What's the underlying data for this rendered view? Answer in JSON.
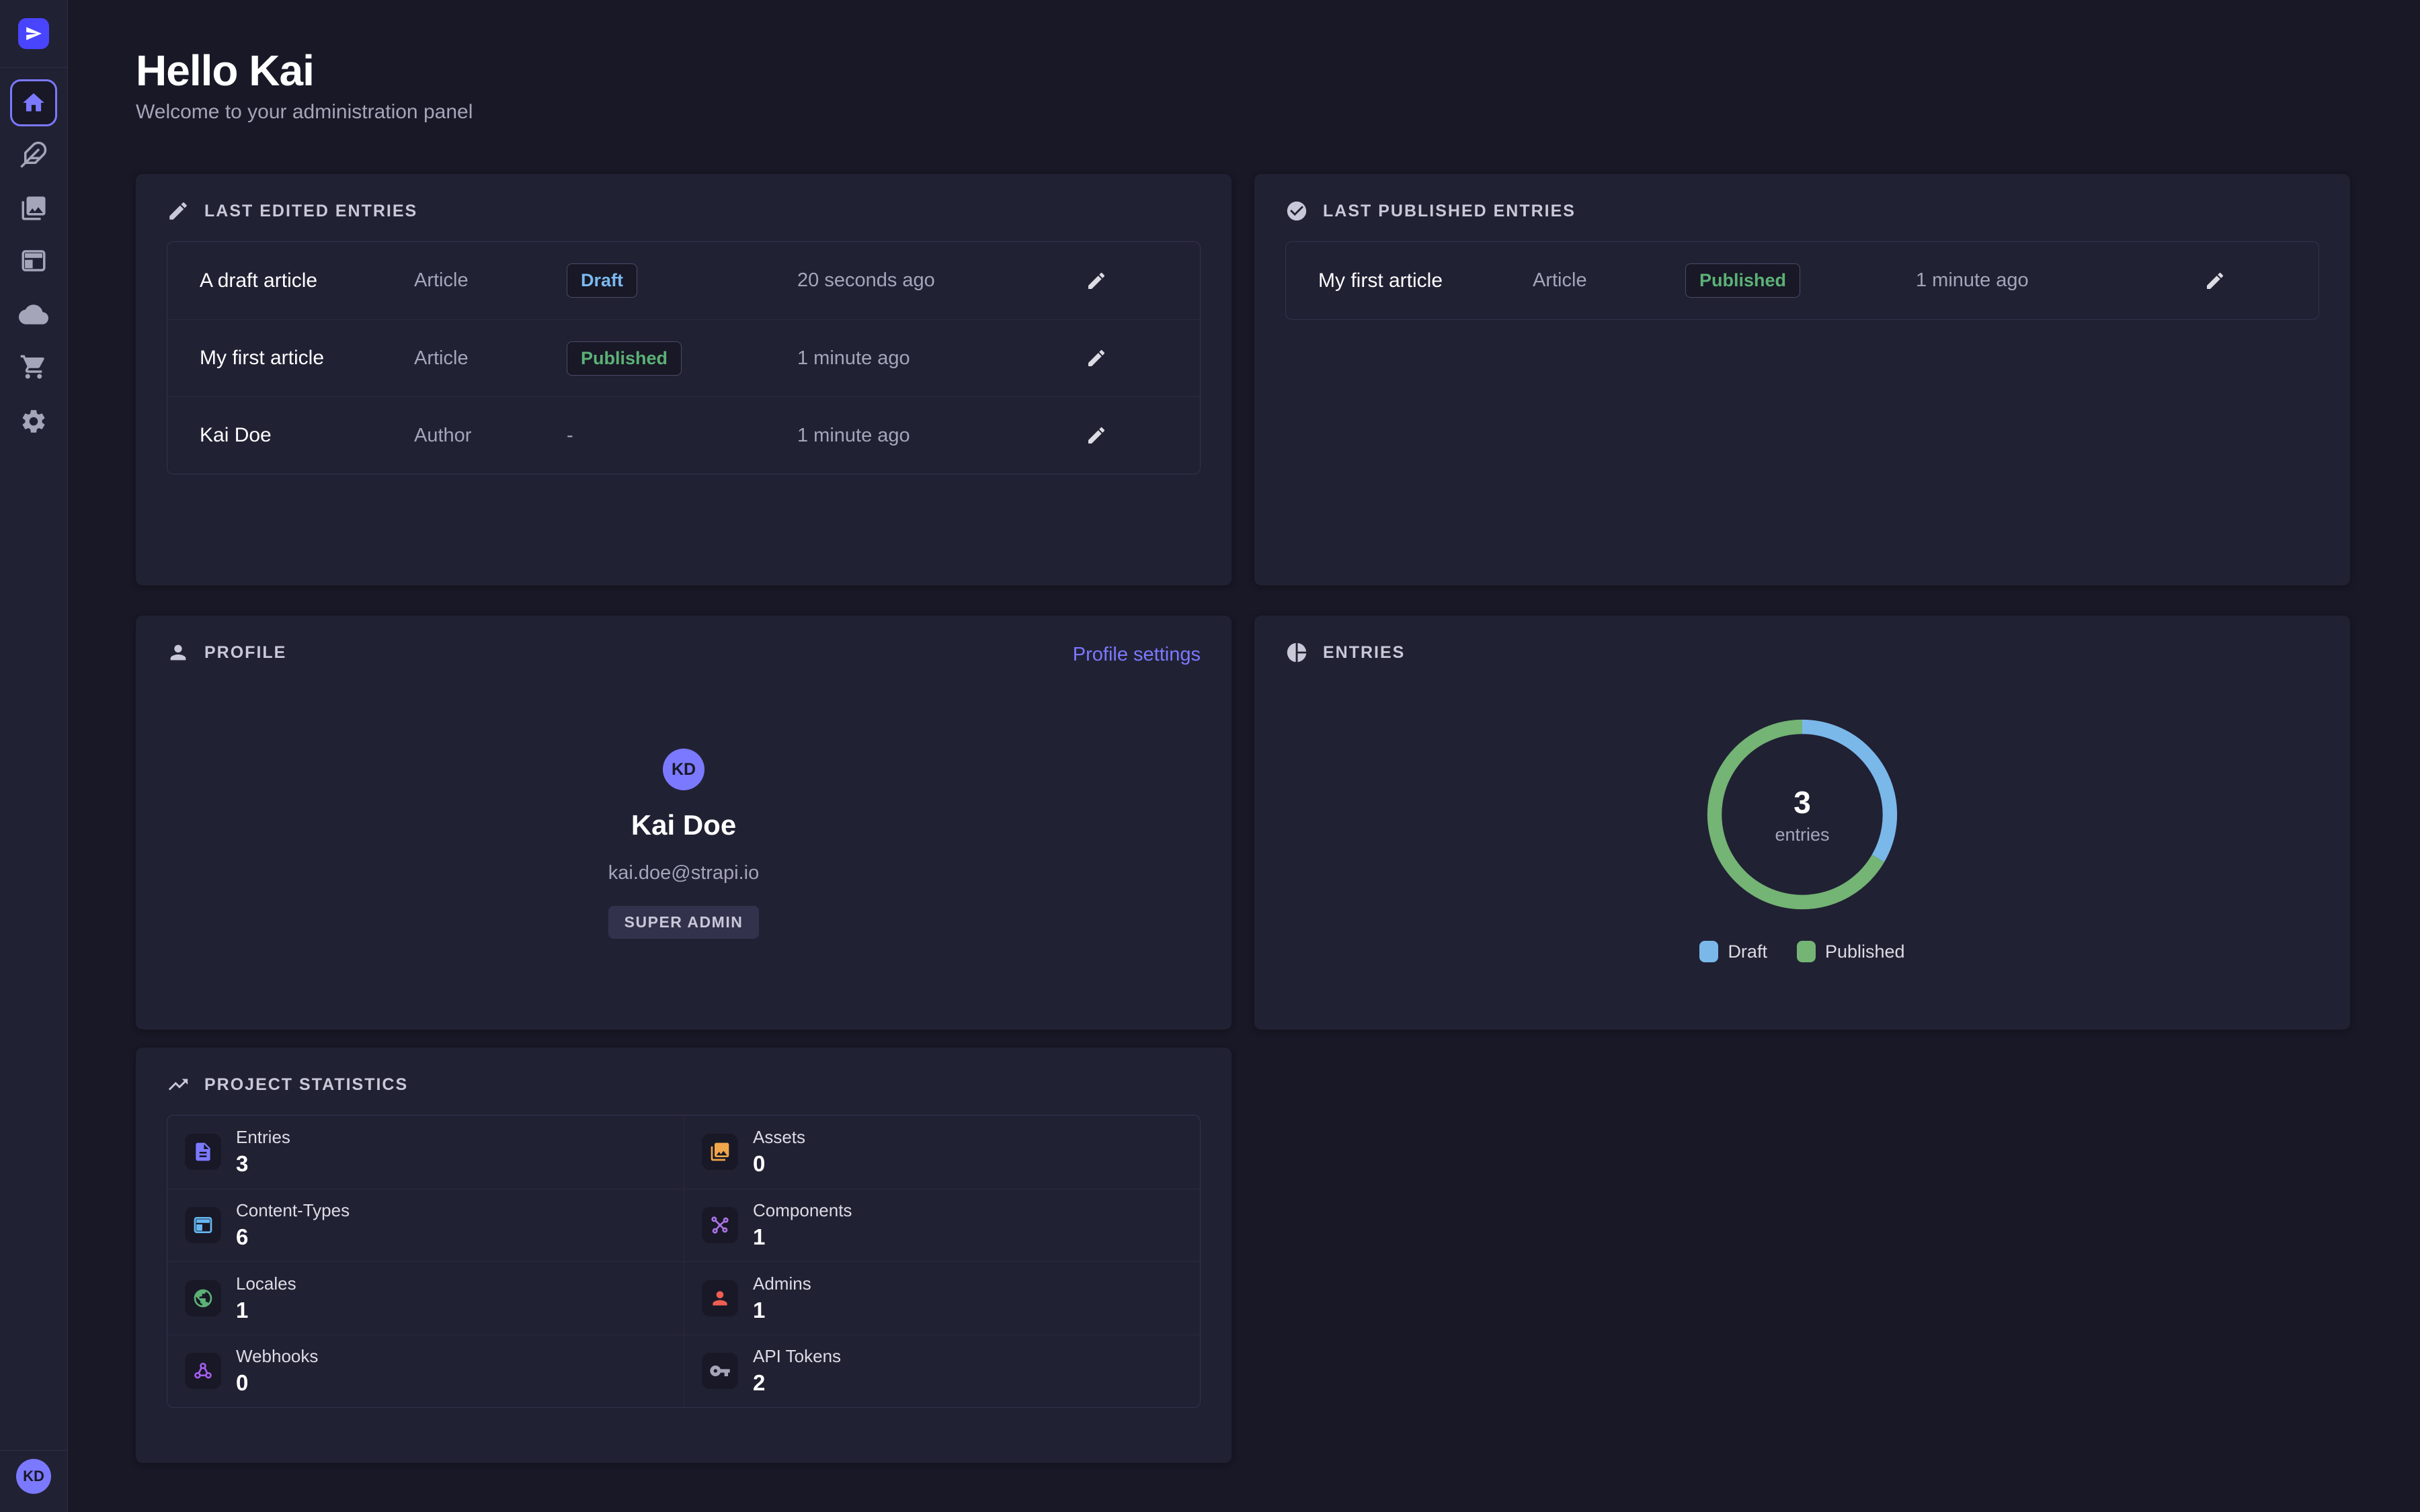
{
  "colors": {
    "page_bg": "#181826",
    "panel_bg": "#212134",
    "primary_purple": "#7b79ff",
    "logo_purple": "#4945ff",
    "draft_blue": "#7cb9f0",
    "published_green": "#5cb176",
    "chart_draft_blue": "#7ab8ea",
    "chart_published_green": "#74b474"
  },
  "sidebar": {
    "icons": [
      "strapi-logo",
      "home",
      "content-manager-feather",
      "media-library-pictures",
      "content-type-builder-layout",
      "cloud",
      "marketplace-cart",
      "settings-gear"
    ],
    "user_initials": "KD"
  },
  "header": {
    "title": "Hello Kai",
    "subtitle": "Welcome to your administration panel"
  },
  "panels": {
    "last_edited": {
      "title": "LAST EDITED ENTRIES",
      "rows": [
        {
          "title": "A draft article",
          "kind": "Article",
          "badge": "Draft",
          "time": "20 seconds ago"
        },
        {
          "title": "My first article",
          "kind": "Article",
          "badge": "Published",
          "time": "1 minute ago"
        },
        {
          "title": "Kai Doe",
          "kind": "Author",
          "badge": "-",
          "time": "1 minute ago"
        }
      ]
    },
    "last_published": {
      "title": "LAST PUBLISHED ENTRIES",
      "rows": [
        {
          "title": "My first article",
          "kind": "Article",
          "badge": "Published",
          "time": "1 minute ago"
        }
      ]
    },
    "profile": {
      "title": "PROFILE",
      "link": "Profile settings",
      "initials": "KD",
      "name": "Kai Doe",
      "email": "kai.doe@strapi.io",
      "role": "SUPER ADMIN"
    },
    "entries": {
      "title": "ENTRIES",
      "center_value": "3",
      "center_sublabel": "entries"
    },
    "stats": {
      "title": "PROJECT STATISTICS",
      "cells": [
        {
          "label": "Entries",
          "value": "3",
          "icon": "document-icon",
          "color": "#7b79ff"
        },
        {
          "label": "Assets",
          "value": "0",
          "icon": "picture-icon",
          "color": "#f0a64b"
        },
        {
          "label": "Content-Types",
          "value": "6",
          "icon": "layout-icon",
          "color": "#66b7f1"
        },
        {
          "label": "Components",
          "value": "1",
          "icon": "molecule-icon",
          "color": "#ac73e6"
        },
        {
          "label": "Locales",
          "value": "1",
          "icon": "globe-icon",
          "color": "#5cb176"
        },
        {
          "label": "Admins",
          "value": "1",
          "icon": "person-icon",
          "color": "#ee5e52"
        },
        {
          "label": "Webhooks",
          "value": "0",
          "icon": "webhook-icon",
          "color": "#a45ef0"
        },
        {
          "label": "API Tokens",
          "value": "2",
          "icon": "key-icon",
          "color": "#a5a5ba"
        }
      ]
    }
  },
  "chart_data": {
    "type": "pie",
    "subtype": "donut",
    "title": "ENTRIES",
    "labels": [
      "Draft",
      "Published"
    ],
    "values": [
      1,
      2
    ],
    "total": 3,
    "center_label": "3",
    "center_sublabel": "entries",
    "colors": [
      "#7ab8ea",
      "#74b474"
    ],
    "legend_position": "bottom",
    "start_angle_deg": 0,
    "direction": "clockwise"
  }
}
